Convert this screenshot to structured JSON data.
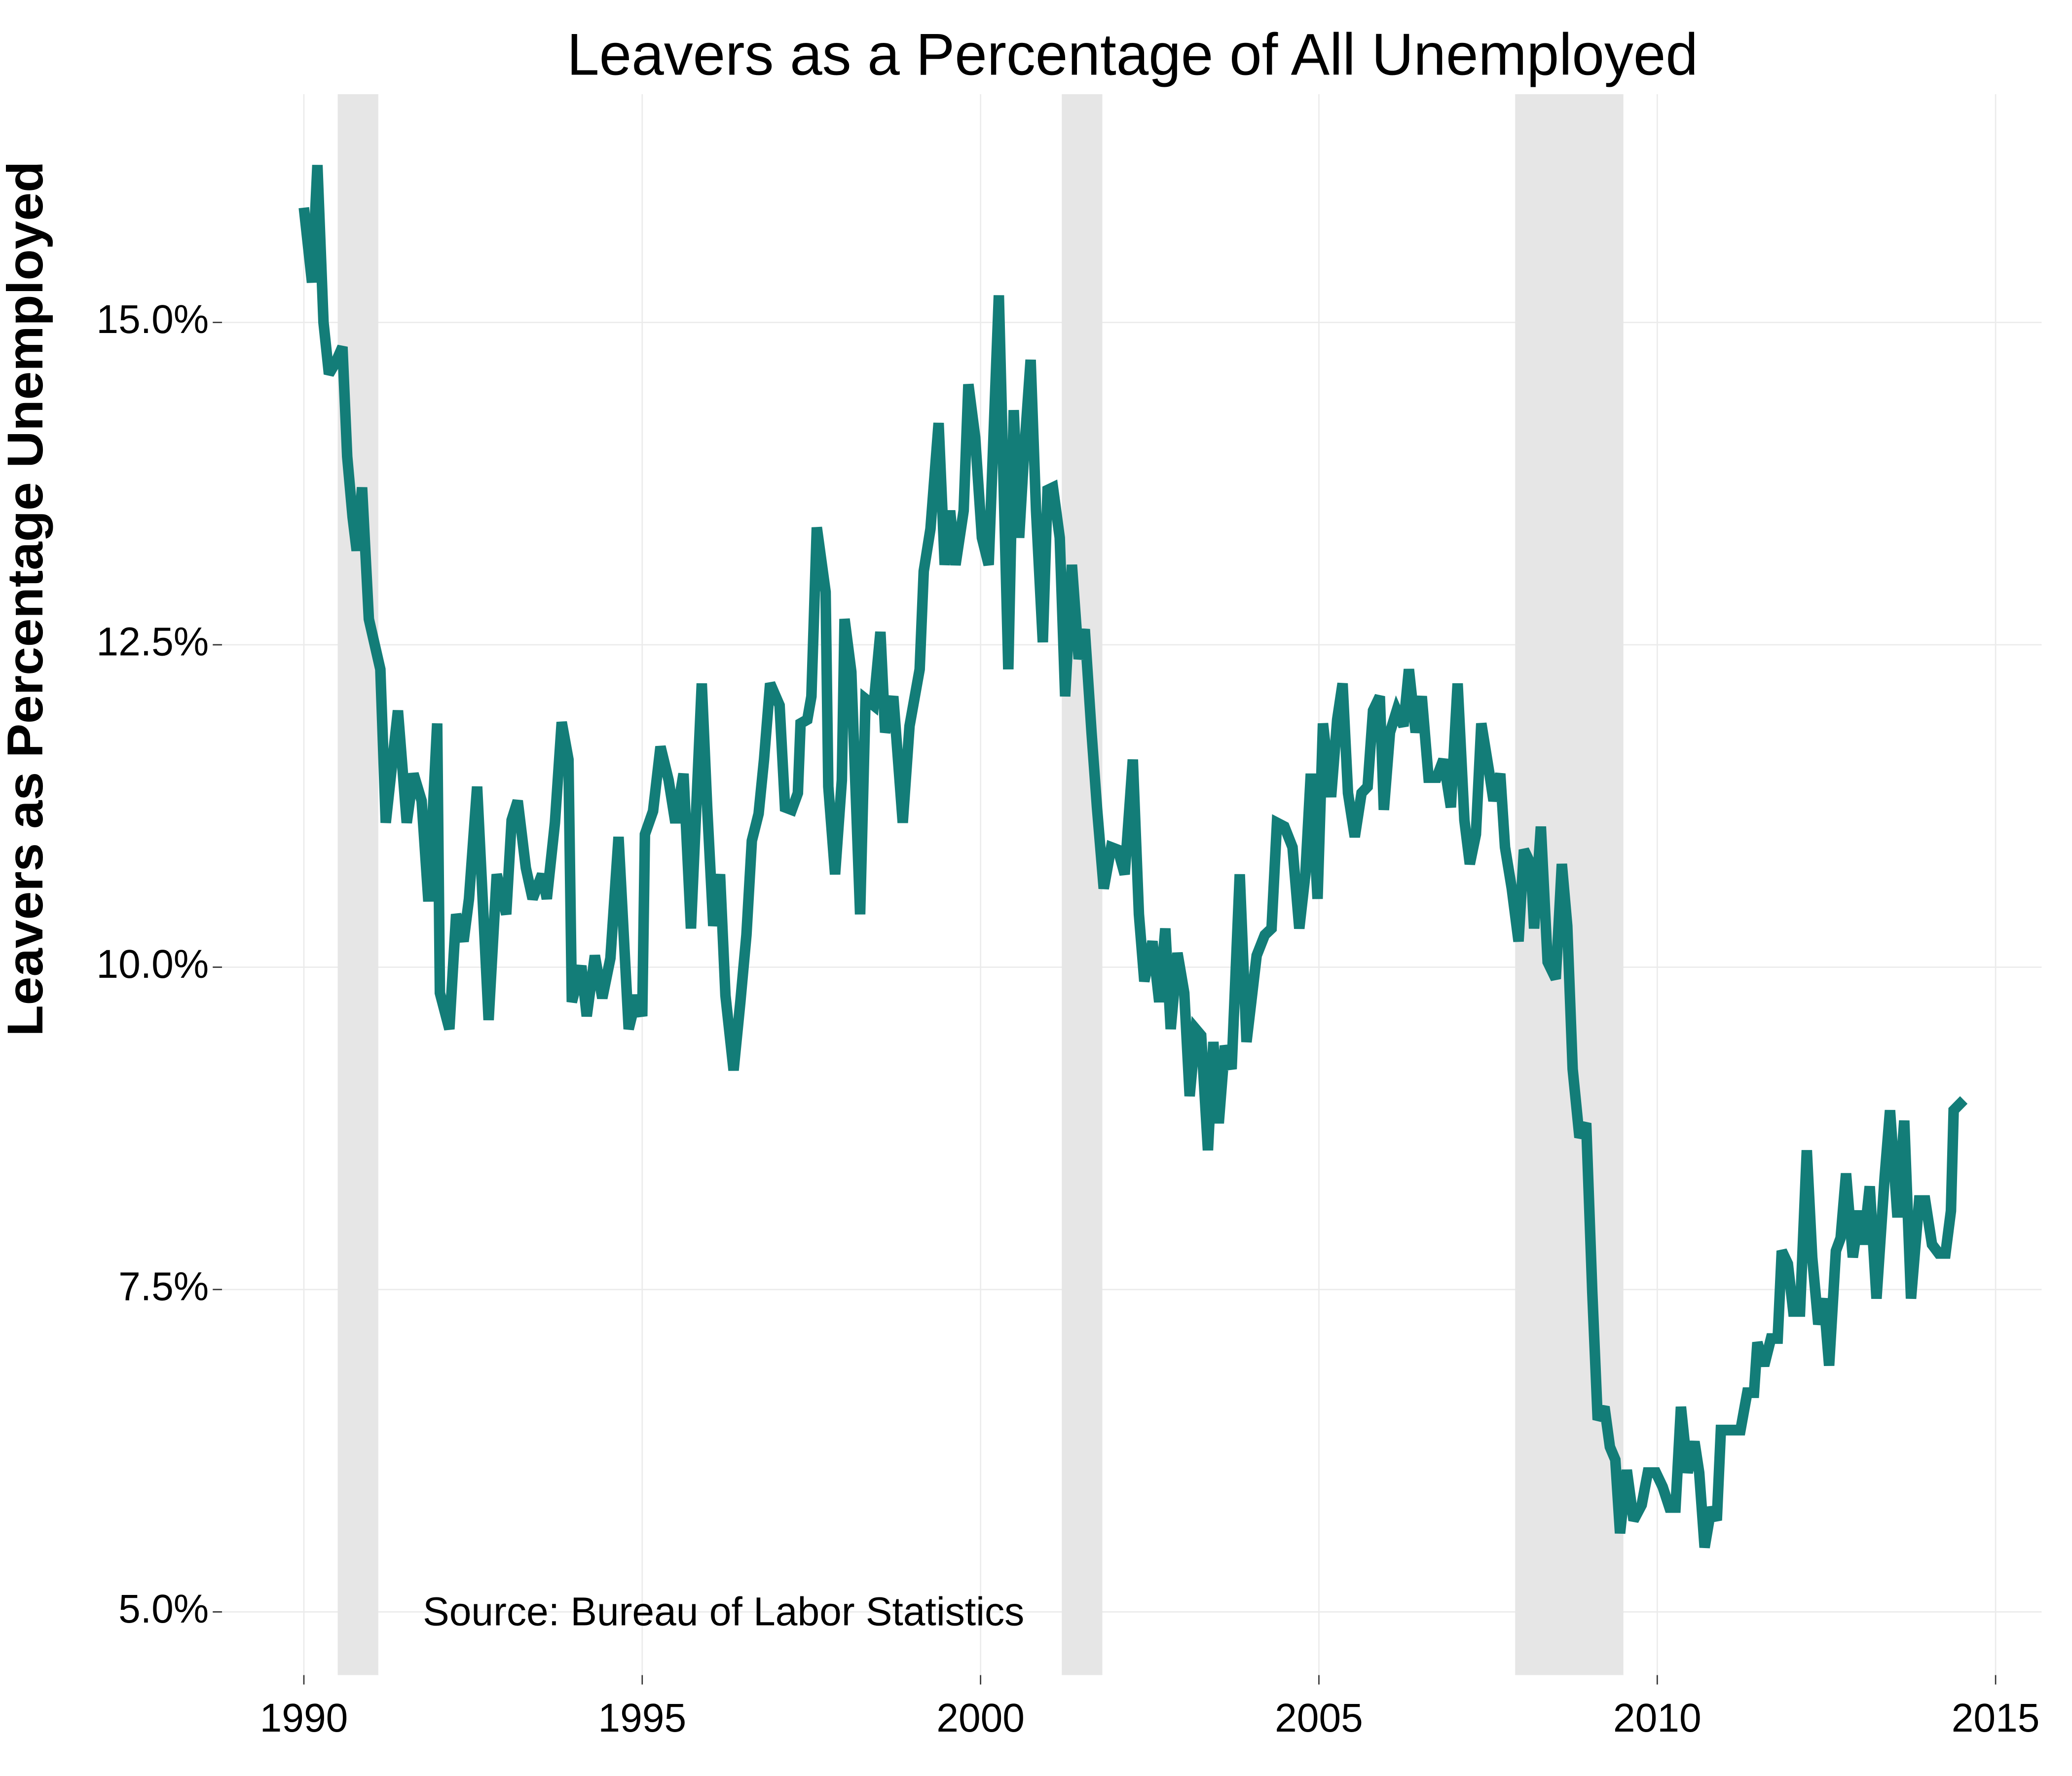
{
  "chart_data": {
    "type": "line",
    "title": "Leavers as a Percentage of All Unemployed",
    "ylabel": "Leavers as Percentage Unemployed",
    "annotation": "Source: Bureau of Labor Statistics",
    "color": "#137d78",
    "shade_color": "#e6e6e6",
    "grid": true,
    "xlim": [
      1988.79,
      2015.68
    ],
    "ylim": [
      4.51,
      16.77
    ],
    "xticks": [
      1990,
      1995,
      2000,
      2005,
      2010,
      2015
    ],
    "yticks": [
      {
        "value": 5,
        "label": "5.0%"
      },
      {
        "value": 7.5,
        "label": "7.5%"
      },
      {
        "value": 10,
        "label": "10.0%"
      },
      {
        "value": 12.5,
        "label": "12.5%"
      },
      {
        "value": 15,
        "label": "15.0%"
      }
    ],
    "shaded_regions": [
      [
        1990.5,
        1991.1
      ],
      [
        2001.2,
        2001.8
      ],
      [
        2007.9,
        2009.5
      ]
    ],
    "x": [
      1990.0,
      1990.12,
      1990.2,
      1990.29,
      1990.37,
      1990.47,
      1990.57,
      1990.64,
      1990.72,
      1990.78,
      1990.86,
      1990.96,
      1991.13,
      1991.21,
      1991.39,
      1991.52,
      1991.62,
      1991.74,
      1991.84,
      1991.97,
      1992.01,
      1992.15,
      1992.25,
      1992.36,
      1992.44,
      1992.56,
      1992.73,
      1992.85,
      1992.99,
      1993.07,
      1993.16,
      1993.28,
      1993.38,
      1993.52,
      1993.59,
      1993.71,
      1993.81,
      1993.91,
      1993.96,
      1994.1,
      1994.18,
      1994.3,
      1994.41,
      1994.53,
      1994.65,
      1994.8,
      1994.92,
      1995.0,
      1995.04,
      1995.16,
      1995.27,
      1995.39,
      1995.49,
      1995.61,
      1995.72,
      1995.88,
      1995.96,
      1996.05,
      1996.15,
      1996.23,
      1996.35,
      1996.45,
      1996.54,
      1996.62,
      1996.72,
      1996.8,
      1996.89,
      1997.03,
      1997.11,
      1997.21,
      1997.3,
      1997.34,
      1997.44,
      1997.5,
      1997.58,
      1997.71,
      1997.75,
      1997.85,
      1997.95,
      1997.99,
      1998.09,
      1998.22,
      1998.3,
      1998.42,
      1998.52,
      1998.59,
      1998.71,
      1998.85,
      1998.95,
      1999.1,
      1999.16,
      1999.26,
      1999.38,
      1999.47,
      1999.55,
      1999.63,
      1999.75,
      1999.82,
      1999.92,
      2000.02,
      2000.12,
      2000.18,
      2000.27,
      2000.41,
      2000.49,
      2000.57,
      2000.64,
      2000.74,
      2000.82,
      2000.92,
      2000.99,
      2001.07,
      2001.17,
      2001.25,
      2001.35,
      2001.45,
      2001.54,
      2001.64,
      2001.72,
      2001.82,
      2001.93,
      2002.03,
      2002.13,
      2002.25,
      2002.34,
      2002.42,
      2002.54,
      2002.64,
      2002.73,
      2002.81,
      2002.91,
      2003.01,
      2003.09,
      2003.18,
      2003.26,
      2003.36,
      2003.44,
      2003.52,
      2003.61,
      2003.71,
      2003.83,
      2003.93,
      2004.0,
      2004.08,
      2004.2,
      2004.3,
      2004.38,
      2004.49,
      2004.61,
      2004.71,
      2004.8,
      2004.88,
      2004.98,
      2005.06,
      2005.18,
      2005.27,
      2005.35,
      2005.43,
      2005.53,
      2005.63,
      2005.72,
      2005.8,
      2005.9,
      2005.96,
      2006.05,
      2006.15,
      2006.25,
      2006.33,
      2006.43,
      2006.52,
      2006.62,
      2006.74,
      2006.84,
      2006.95,
      2007.05,
      2007.15,
      2007.23,
      2007.32,
      2007.4,
      2007.52,
      2007.58,
      2007.68,
      2007.75,
      2007.85,
      2007.95,
      2008.03,
      2008.13,
      2008.18,
      2008.28,
      2008.38,
      2008.5,
      2008.59,
      2008.67,
      2008.75,
      2008.85,
      2008.95,
      2009.04,
      2009.12,
      2009.22,
      2009.3,
      2009.38,
      2009.45,
      2009.55,
      2009.65,
      2009.77,
      2009.86,
      2009.98,
      2010.08,
      2010.18,
      2010.27,
      2010.35,
      2010.45,
      2010.55,
      2010.62,
      2010.7,
      2010.8,
      2010.88,
      2010.94,
      2011.04,
      2011.13,
      2011.23,
      2011.33,
      2011.43,
      2011.48,
      2011.58,
      2011.68,
      2011.78,
      2011.84,
      2011.93,
      2012.01,
      2012.11,
      2012.21,
      2012.29,
      2012.38,
      2012.46,
      2012.54,
      2012.64,
      2012.71,
      2012.79,
      2012.89,
      2012.99,
      2013.05,
      2013.14,
      2013.24,
      2013.36,
      2013.44,
      2013.55,
      2013.65,
      2013.75,
      2013.87,
      2013.96,
      2014.06,
      2014.16,
      2014.26,
      2014.34,
      2014.38,
      2014.53
    ],
    "values": [
      15.89,
      15.31,
      16.22,
      15.0,
      14.6,
      14.69,
      14.81,
      13.96,
      13.49,
      13.23,
      13.72,
      12.7,
      12.31,
      11.12,
      11.99,
      11.12,
      11.5,
      11.29,
      10.51,
      11.89,
      9.8,
      9.52,
      10.41,
      10.2,
      10.53,
      11.4,
      9.59,
      10.72,
      10.41,
      11.14,
      11.29,
      10.77,
      10.53,
      10.72,
      10.53,
      11.12,
      11.9,
      11.61,
      9.73,
      10.01,
      9.62,
      10.09,
      9.76,
      10.07,
      11.01,
      9.52,
      9.78,
      9.62,
      11.03,
      11.21,
      11.71,
      11.45,
      11.12,
      11.5,
      10.3,
      12.2,
      11.24,
      10.32,
      10.72,
      9.78,
      9.2,
      9.73,
      10.25,
      10.98,
      11.19,
      11.61,
      12.2,
      12.03,
      11.24,
      11.22,
      11.35,
      11.89,
      11.92,
      12.1,
      13.41,
      12.91,
      11.4,
      10.72,
      11.45,
      12.7,
      12.29,
      10.41,
      12.08,
      12.03,
      12.6,
      11.82,
      12.1,
      11.12,
      11.87,
      12.31,
      13.07,
      13.4,
      14.22,
      13.12,
      13.54,
      13.12,
      13.54,
      14.52,
      14.11,
      13.33,
      13.12,
      13.96,
      15.21,
      12.31,
      14.32,
      13.33,
      13.96,
      14.71,
      13.54,
      12.52,
      13.7,
      13.72,
      13.33,
      12.1,
      13.12,
      12.39,
      12.62,
      11.82,
      11.24,
      10.61,
      10.93,
      10.91,
      10.72,
      11.61,
      10.41,
      9.89,
      10.2,
      9.73,
      10.3,
      9.52,
      10.11,
      9.8,
      9.0,
      9.52,
      9.47,
      8.58,
      9.42,
      8.79,
      9.39,
      9.21,
      10.72,
      9.42,
      9.73,
      10.09,
      10.25,
      10.3,
      11.12,
      11.09,
      10.93,
      10.3,
      10.72,
      11.5,
      10.53,
      11.89,
      11.32,
      11.92,
      12.2,
      11.35,
      11.01,
      11.35,
      11.4,
      11.99,
      12.1,
      11.22,
      11.82,
      11.99,
      11.87,
      12.31,
      11.82,
      12.1,
      11.47,
      11.47,
      11.61,
      11.24,
      12.2,
      11.14,
      10.8,
      11.03,
      11.89,
      11.5,
      11.29,
      11.5,
      10.93,
      10.61,
      10.2,
      10.91,
      10.8,
      10.3,
      11.09,
      10.04,
      9.91,
      10.8,
      10.32,
      9.21,
      8.68,
      8.79,
      7.48,
      6.49,
      6.59,
      6.28,
      6.18,
      5.61,
      6.1,
      5.71,
      5.83,
      6.08,
      6.08,
      5.97,
      5.81,
      5.81,
      6.59,
      6.08,
      6.32,
      6.08,
      5.5,
      5.81,
      5.71,
      6.41,
      6.41,
      6.41,
      6.41,
      6.7,
      6.7,
      7.09,
      6.91,
      7.12,
      7.12,
      7.8,
      7.7,
      7.33,
      7.33,
      8.58,
      7.75,
      7.23,
      7.43,
      6.91,
      7.8,
      7.9,
      8.4,
      7.75,
      8.11,
      7.85,
      8.3,
      7.43,
      8.37,
      8.89,
      8.06,
      8.81,
      7.43,
      8.19,
      8.19,
      7.85,
      7.78,
      7.78,
      8.11,
      8.89,
      8.97
    ]
  }
}
